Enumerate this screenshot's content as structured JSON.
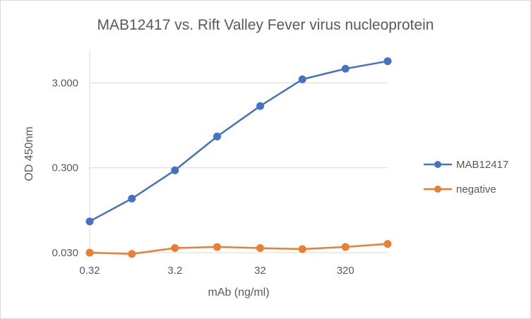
{
  "chart_data": {
    "type": "line",
    "title": "MAB12417 vs. Rift Valley Fever virus nucleoprotein",
    "xlabel": "mAb (ng/ml)",
    "ylabel": "OD 450nm",
    "x_scale": "log",
    "y_scale": "log",
    "x": [
      0.32,
      1,
      3.2,
      10,
      32,
      100,
      320,
      1000
    ],
    "x_tick_labels": [
      "0.32",
      "3.2",
      "32",
      "320"
    ],
    "x_tick_values": [
      0.32,
      3.2,
      32,
      320
    ],
    "y_tick_labels": [
      "0.030",
      "0.300",
      "3.000"
    ],
    "y_tick_values": [
      0.03,
      0.3,
      3.0
    ],
    "ylim": [
      0.03,
      9.0
    ],
    "grid": "horizontal",
    "legend_position": "right",
    "series": [
      {
        "name": "MAB12417",
        "color": "#4472C4",
        "values": [
          0.07,
          0.13,
          0.28,
          0.7,
          1.6,
          3.3,
          4.4,
          5.4
        ]
      },
      {
        "name": "negative",
        "color": "#ED7D31",
        "values": [
          0.03,
          0.029,
          0.034,
          0.035,
          0.034,
          0.033,
          0.035,
          0.038
        ]
      }
    ]
  }
}
